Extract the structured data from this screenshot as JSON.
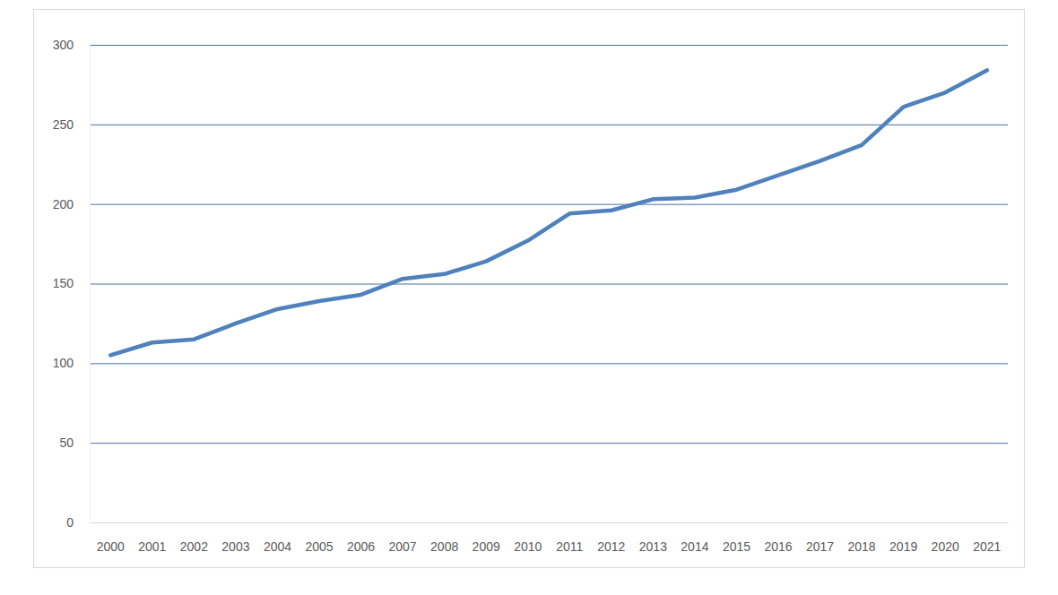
{
  "chart_data": {
    "type": "line",
    "categories": [
      "2000",
      "2001",
      "2002",
      "2003",
      "2004",
      "2005",
      "2006",
      "2007",
      "2008",
      "2009",
      "2010",
      "2011",
      "2012",
      "2013",
      "2014",
      "2015",
      "2016",
      "2017",
      "2018",
      "2019",
      "2020",
      "2021"
    ],
    "values": [
      105,
      113,
      115,
      125,
      134,
      139,
      143,
      153,
      156,
      164,
      177,
      194,
      196,
      203,
      204,
      209,
      218,
      227,
      237,
      261,
      270,
      284
    ],
    "color": "#4f81bd",
    "ylim": [
      0,
      300
    ],
    "yticks": [
      0,
      50,
      100,
      150,
      200,
      250,
      300
    ],
    "grid": true
  }
}
